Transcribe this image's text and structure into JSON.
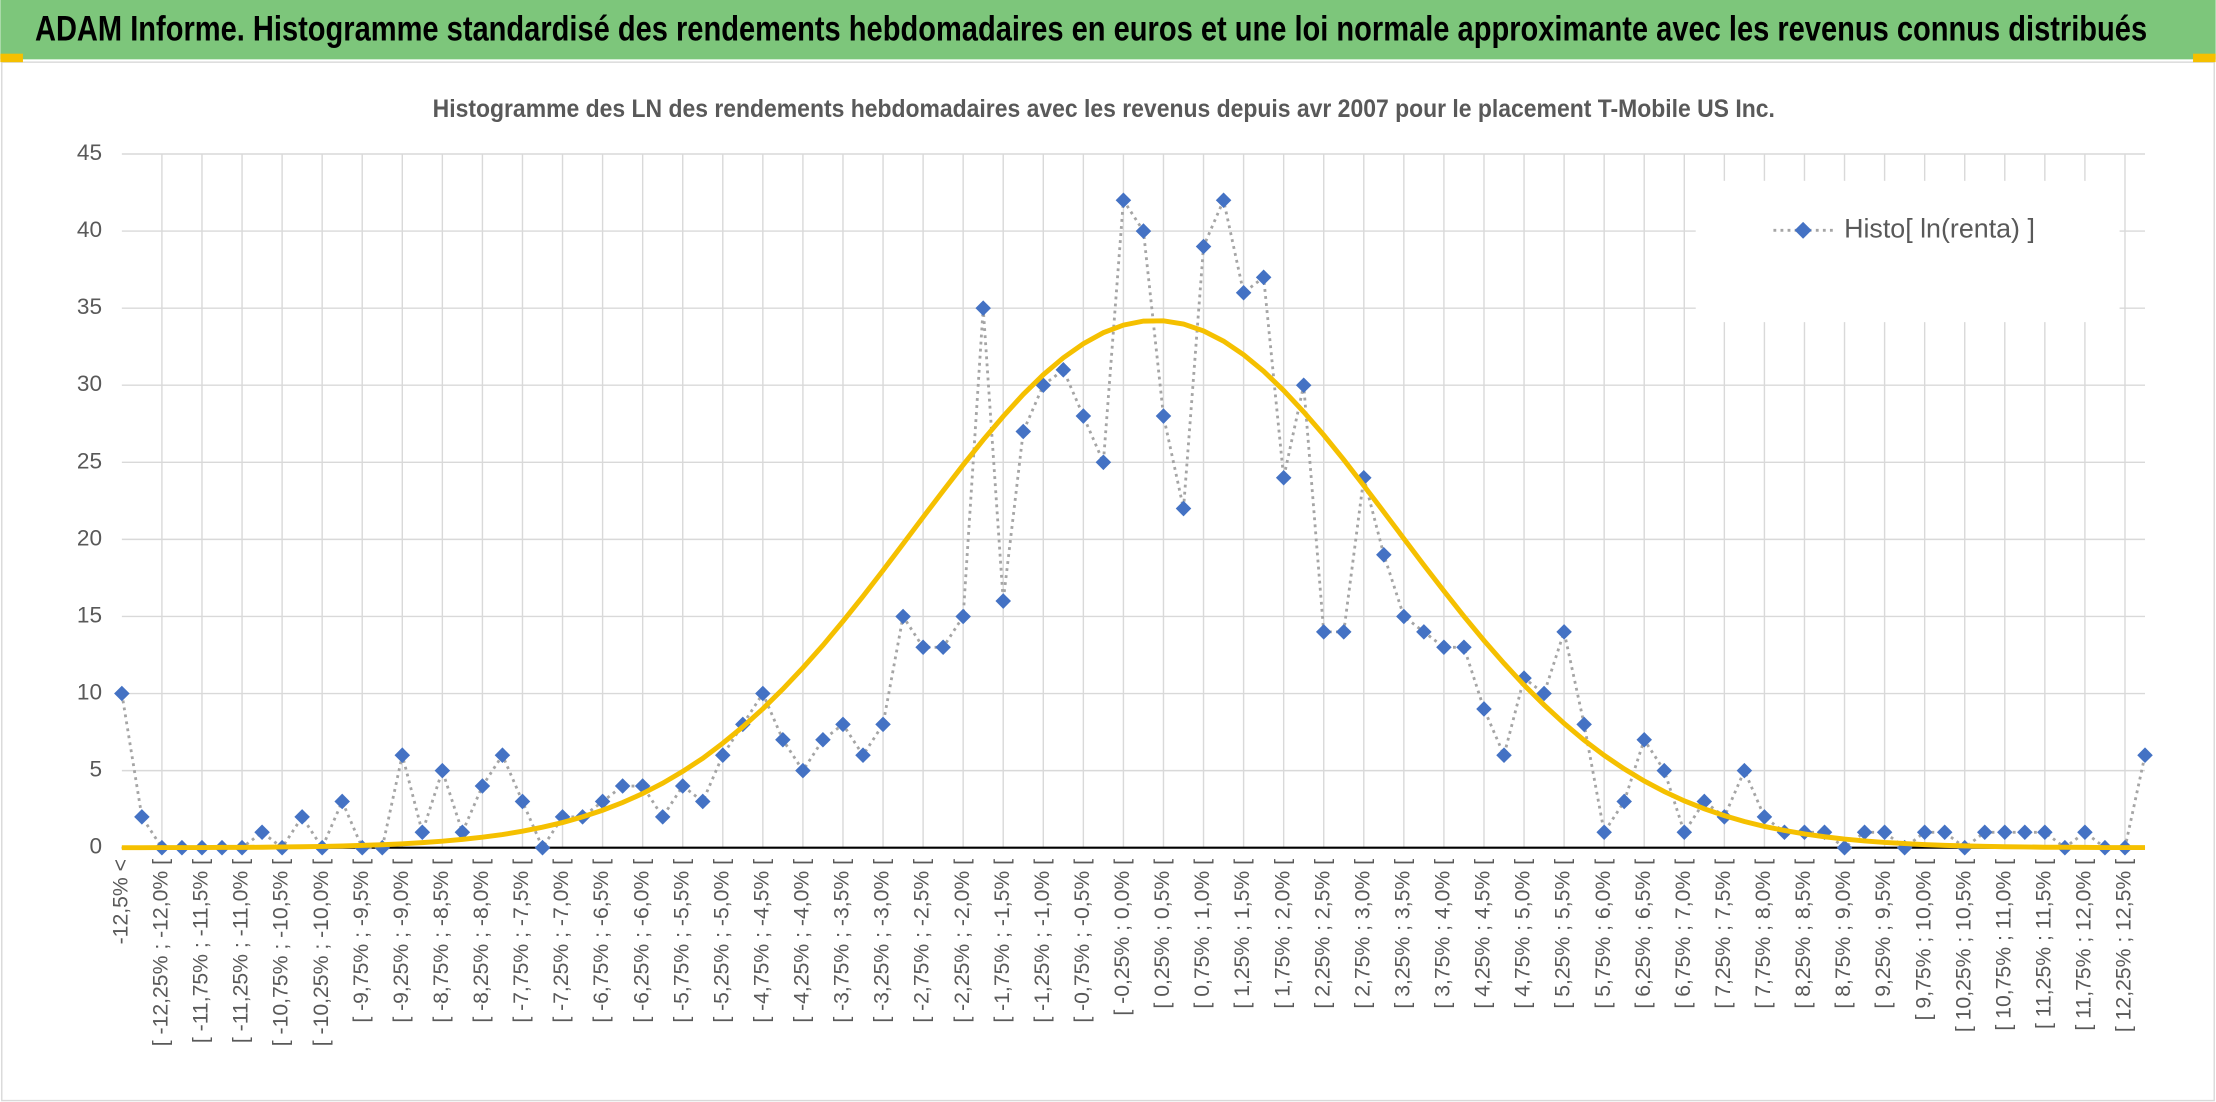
{
  "chart_data": {
    "type": "line",
    "header": "ADAM Informe. Histogramme standardisé des rendements hebdomadaires en euros et une loi normale approximante avec les revenus connus distribués",
    "title": "Histogramme des LN des rendements hebdomadaires avec les revenus depuis avr 2007 pour le placement T-Mobile US Inc.",
    "categories": [
      "-12,5% <",
      null,
      "[ -12,25% ; -12,0% [",
      null,
      "[ -11,75% ; -11,5% [",
      null,
      "[ -11,25% ; -11,0% [",
      null,
      "[ -10,75% ; -10,5% [",
      null,
      "[ -10,25% ; -10,0% [",
      null,
      "[ -9,75% ; -9,5% [",
      null,
      "[ -9,25% ; -9,0% [",
      null,
      "[ -8,75% ; -8,5% [",
      null,
      "[ -8,25% ; -8,0% [",
      null,
      "[ -7,75% ; -7,5% [",
      null,
      "[ -7,25% ; -7,0% [",
      null,
      "[ -6,75% ; -6,5% [",
      null,
      "[ -6,25% ; -6,0% [",
      null,
      "[ -5,75% ; -5,5% [",
      null,
      "[ -5,25% ; -5,0% [",
      null,
      "[ -4,75% ; -4,5% [",
      null,
      "[ -4,25% ; -4,0% [",
      null,
      "[ -3,75% ; -3,5% [",
      null,
      "[ -3,25% ; -3,0% [",
      null,
      "[ -2,75% ; -2,5% [",
      null,
      "[ -2,25% ; -2,0% [",
      null,
      "[ -1,75% ; -1,5% [",
      null,
      "[ -1,25% ; -1,0% [",
      null,
      "[ -0,75% ; -0,5% [",
      null,
      "[ -0,25% ; 0,0% [",
      null,
      "[ 0,25% ; 0,5% [",
      null,
      "[ 0,75% ; 1,0% [",
      null,
      "[ 1,25% ; 1,5% [",
      null,
      "[ 1,75% ; 2,0% [",
      null,
      "[ 2,25% ; 2,5% [",
      null,
      "[ 2,75% ; 3,0% [",
      null,
      "[ 3,25% ; 3,5% [",
      null,
      "[ 3,75% ; 4,0% [",
      null,
      "[ 4,25% ; 4,5% [",
      null,
      "[ 4,75% ; 5,0% [",
      null,
      "[ 5,25% ; 5,5% [",
      null,
      "[ 5,75% ; 6,0% [",
      null,
      "[ 6,25% ; 6,5% [",
      null,
      "[ 6,75% ; 7,0% [",
      null,
      "[ 7,25% ; 7,5% [",
      null,
      "[ 7,75% ; 8,0% [",
      null,
      "[ 8,25% ; 8,5% [",
      null,
      "[ 8,75% ; 9,0% [",
      null,
      "[ 9,25% ; 9,5% [",
      null,
      "[ 9,75% ; 10,0% [",
      null,
      "[ 10,25% ; 10,5% [",
      null,
      "[ 10,75% ; 11,0% [",
      null,
      "[ 11,25% ; 11,5% [",
      null,
      "[ 11,75% ; 12,0% [",
      null,
      "[ 12,25% ; 12,5% [",
      null
    ],
    "series": [
      {
        "name": "Histo[ ln(renta) ]",
        "color": "#4472c4",
        "line_color": "#a5a5a5",
        "values": [
          10,
          2,
          0,
          0,
          0,
          0,
          0,
          1,
          0,
          2,
          0,
          3,
          0,
          0,
          6,
          1,
          5,
          1,
          4,
          6,
          3,
          0,
          2,
          2,
          3,
          4,
          4,
          2,
          4,
          3,
          6,
          8,
          10,
          7,
          5,
          7,
          8,
          6,
          8,
          15,
          13,
          13,
          15,
          35,
          16,
          27,
          30,
          31,
          28,
          25,
          42,
          40,
          28,
          22,
          39,
          42,
          36,
          37,
          24,
          30,
          14,
          14,
          24,
          19,
          15,
          14,
          13,
          13,
          9,
          6,
          11,
          10,
          14,
          8,
          1,
          3,
          7,
          5,
          1,
          3,
          2,
          5,
          2,
          1,
          1,
          1,
          0,
          1,
          1,
          0,
          1,
          1,
          0,
          1,
          1,
          1,
          1,
          0,
          1,
          0,
          0,
          6
        ]
      },
      {
        "color": "#f5c000",
        "values": [
          0,
          0,
          0.01,
          0.01,
          0.01,
          0.02,
          0.02,
          0.03,
          0.05,
          0.06,
          0.08,
          0.11,
          0.15,
          0.19,
          0.25,
          0.33,
          0.42,
          0.54,
          0.68,
          0.85,
          1.07,
          1.33,
          1.63,
          2,
          2.43,
          2.93,
          3.51,
          4.18,
          4.95,
          5.8,
          6.78,
          7.84,
          9.01,
          10.29,
          11.67,
          13.13,
          14.69,
          16.31,
          17.99,
          19.71,
          21.44,
          23.15,
          24.83,
          26.45,
          27.98,
          29.41,
          30.68,
          31.78,
          32.69,
          33.41,
          33.9,
          34.16,
          34.18,
          33.97,
          33.52,
          32.86,
          31.98,
          30.91,
          29.66,
          28.27,
          26.77,
          25.17,
          23.49,
          21.78,
          20.05,
          18.33,
          16.65,
          15.01,
          13.44,
          11.96,
          10.55,
          9.26,
          8.06,
          6.97,
          5.99,
          5.11,
          4.33,
          3.64,
          3.04,
          2.52,
          2.08,
          1.7,
          1.38,
          1.12,
          0.89,
          0.71,
          0.56,
          0.44,
          0.34,
          0.27,
          0.2,
          0.15,
          0.12,
          0.09,
          0.06,
          0.05,
          0.03,
          0.03,
          0.02,
          0.01,
          0.01,
          0.01
        ]
      }
    ],
    "ylim": [
      0,
      45
    ],
    "yticks": [
      0,
      5,
      10,
      15,
      20,
      25,
      30,
      35,
      40,
      45
    ],
    "grid": true,
    "legend": "top-right"
  }
}
